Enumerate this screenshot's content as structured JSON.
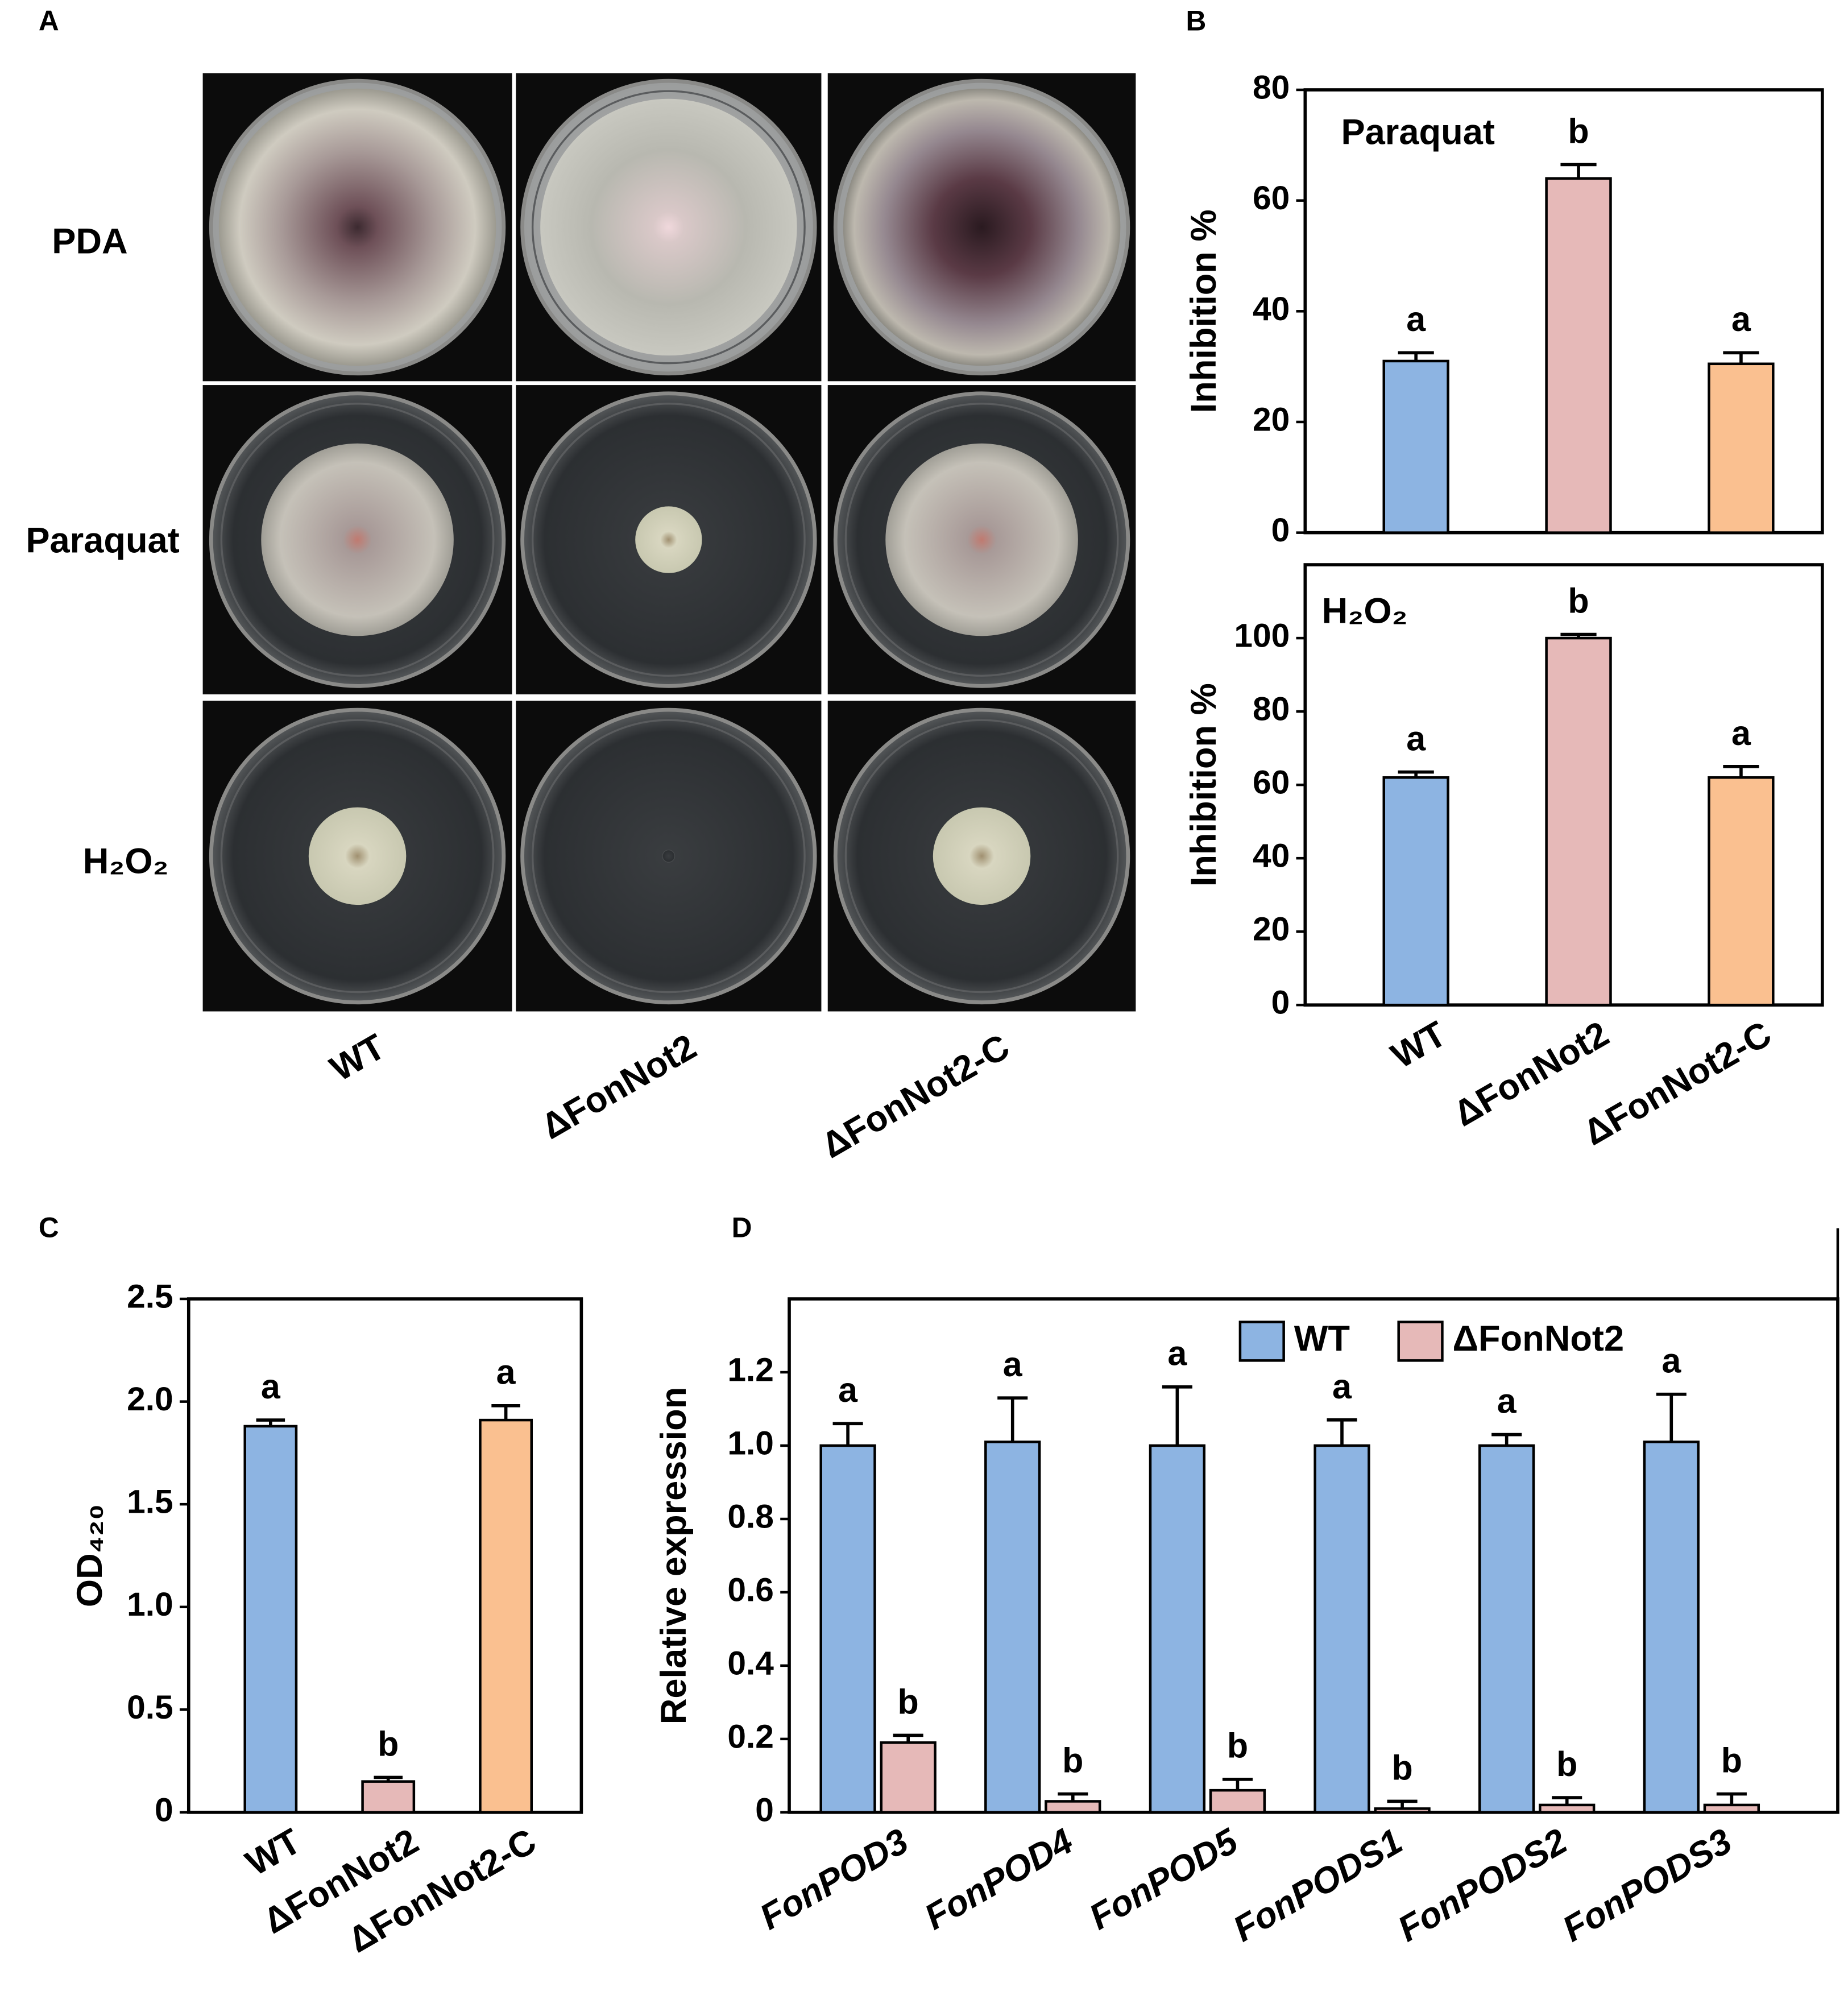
{
  "figure": {
    "panel_labels": [
      "A",
      "B",
      "C",
      "D"
    ],
    "photo_rows": [
      "PDA",
      "Paraquat",
      "H₂O₂"
    ],
    "photo_columns": [
      "WT",
      "ΔFonNot2",
      "ΔFonNot2-C"
    ]
  },
  "chart_data": [
    {
      "type": "bar",
      "annotation": "Paraquat",
      "y_label": "Inhibition %",
      "categories": [
        null,
        null,
        null
      ],
      "values": [
        31,
        64,
        30.5
      ],
      "errors": [
        1.5,
        2.5,
        2
      ],
      "letters": [
        "a",
        "b",
        "a"
      ],
      "colors": [
        "#8db4e2",
        "#e6b9b8",
        "#fac090"
      ],
      "ylim": [
        0,
        80
      ],
      "yticks": [
        0,
        20,
        40,
        60,
        80
      ],
      "grid": false
    },
    {
      "type": "bar",
      "annotation": "H₂O₂",
      "y_label": "Inhibition %",
      "categories": [
        "WT",
        "ΔFonNot2",
        "ΔFonNot2-C"
      ],
      "values": [
        62,
        100,
        62
      ],
      "errors": [
        1.5,
        1,
        3
      ],
      "letters": [
        "a",
        "b",
        "a"
      ],
      "colors": [
        "#8db4e2",
        "#e6b9b8",
        "#fac090"
      ],
      "ylim": [
        0,
        120
      ],
      "yticks": [
        0,
        20,
        40,
        60,
        80,
        100
      ],
      "grid": false
    },
    {
      "type": "bar",
      "y_label": "OD₄₂₀",
      "categories": [
        "WT",
        "ΔFonNot2",
        "ΔFonNot2-C"
      ],
      "values": [
        1.88,
        0.15,
        1.91
      ],
      "errors": [
        0.03,
        0.02,
        0.07
      ],
      "letters": [
        "a",
        "b",
        "a"
      ],
      "colors": [
        "#8db4e2",
        "#e6b9b8",
        "#fac090"
      ],
      "ylim": [
        0,
        2.5
      ],
      "yticks": [
        0,
        0.5,
        {
          "value": 1,
          "label": "1.0"
        },
        1.5,
        {
          "value": 2,
          "label": "2.0"
        },
        2.5
      ],
      "grid": false
    },
    {
      "type": "grouped-bar",
      "y_label": "Relative expression",
      "legend": "top-right",
      "italic_categories": true,
      "categories": [
        "FonPOD3",
        "FonPOD4",
        "FonPOD5",
        "FonPODS1",
        "FonPODS2",
        "FonPODS3"
      ],
      "series": [
        {
          "name": "WT",
          "color": "#8db4e2",
          "values": [
            1.0,
            1.01,
            1.0,
            1.0,
            1.0,
            1.01
          ],
          "errors": [
            0.06,
            0.12,
            0.16,
            0.07,
            0.03,
            0.13
          ],
          "letters": [
            "a",
            "a",
            "a",
            "a",
            "a",
            "a"
          ]
        },
        {
          "name": "ΔFonNot2",
          "color": "#e6b9b8",
          "values": [
            0.19,
            0.03,
            0.06,
            0.01,
            0.02,
            0.02
          ],
          "errors": [
            0.02,
            0.02,
            0.03,
            0.02,
            0.02,
            0.03
          ],
          "letters": [
            "b",
            "b",
            "b",
            "b",
            "b",
            "b"
          ]
        }
      ],
      "ylim": [
        0,
        1.4
      ],
      "yticks": [
        0,
        0.2,
        0.4,
        0.6,
        0.8,
        {
          "value": 1,
          "label": "1.0"
        },
        1.2
      ],
      "grid": false
    }
  ]
}
